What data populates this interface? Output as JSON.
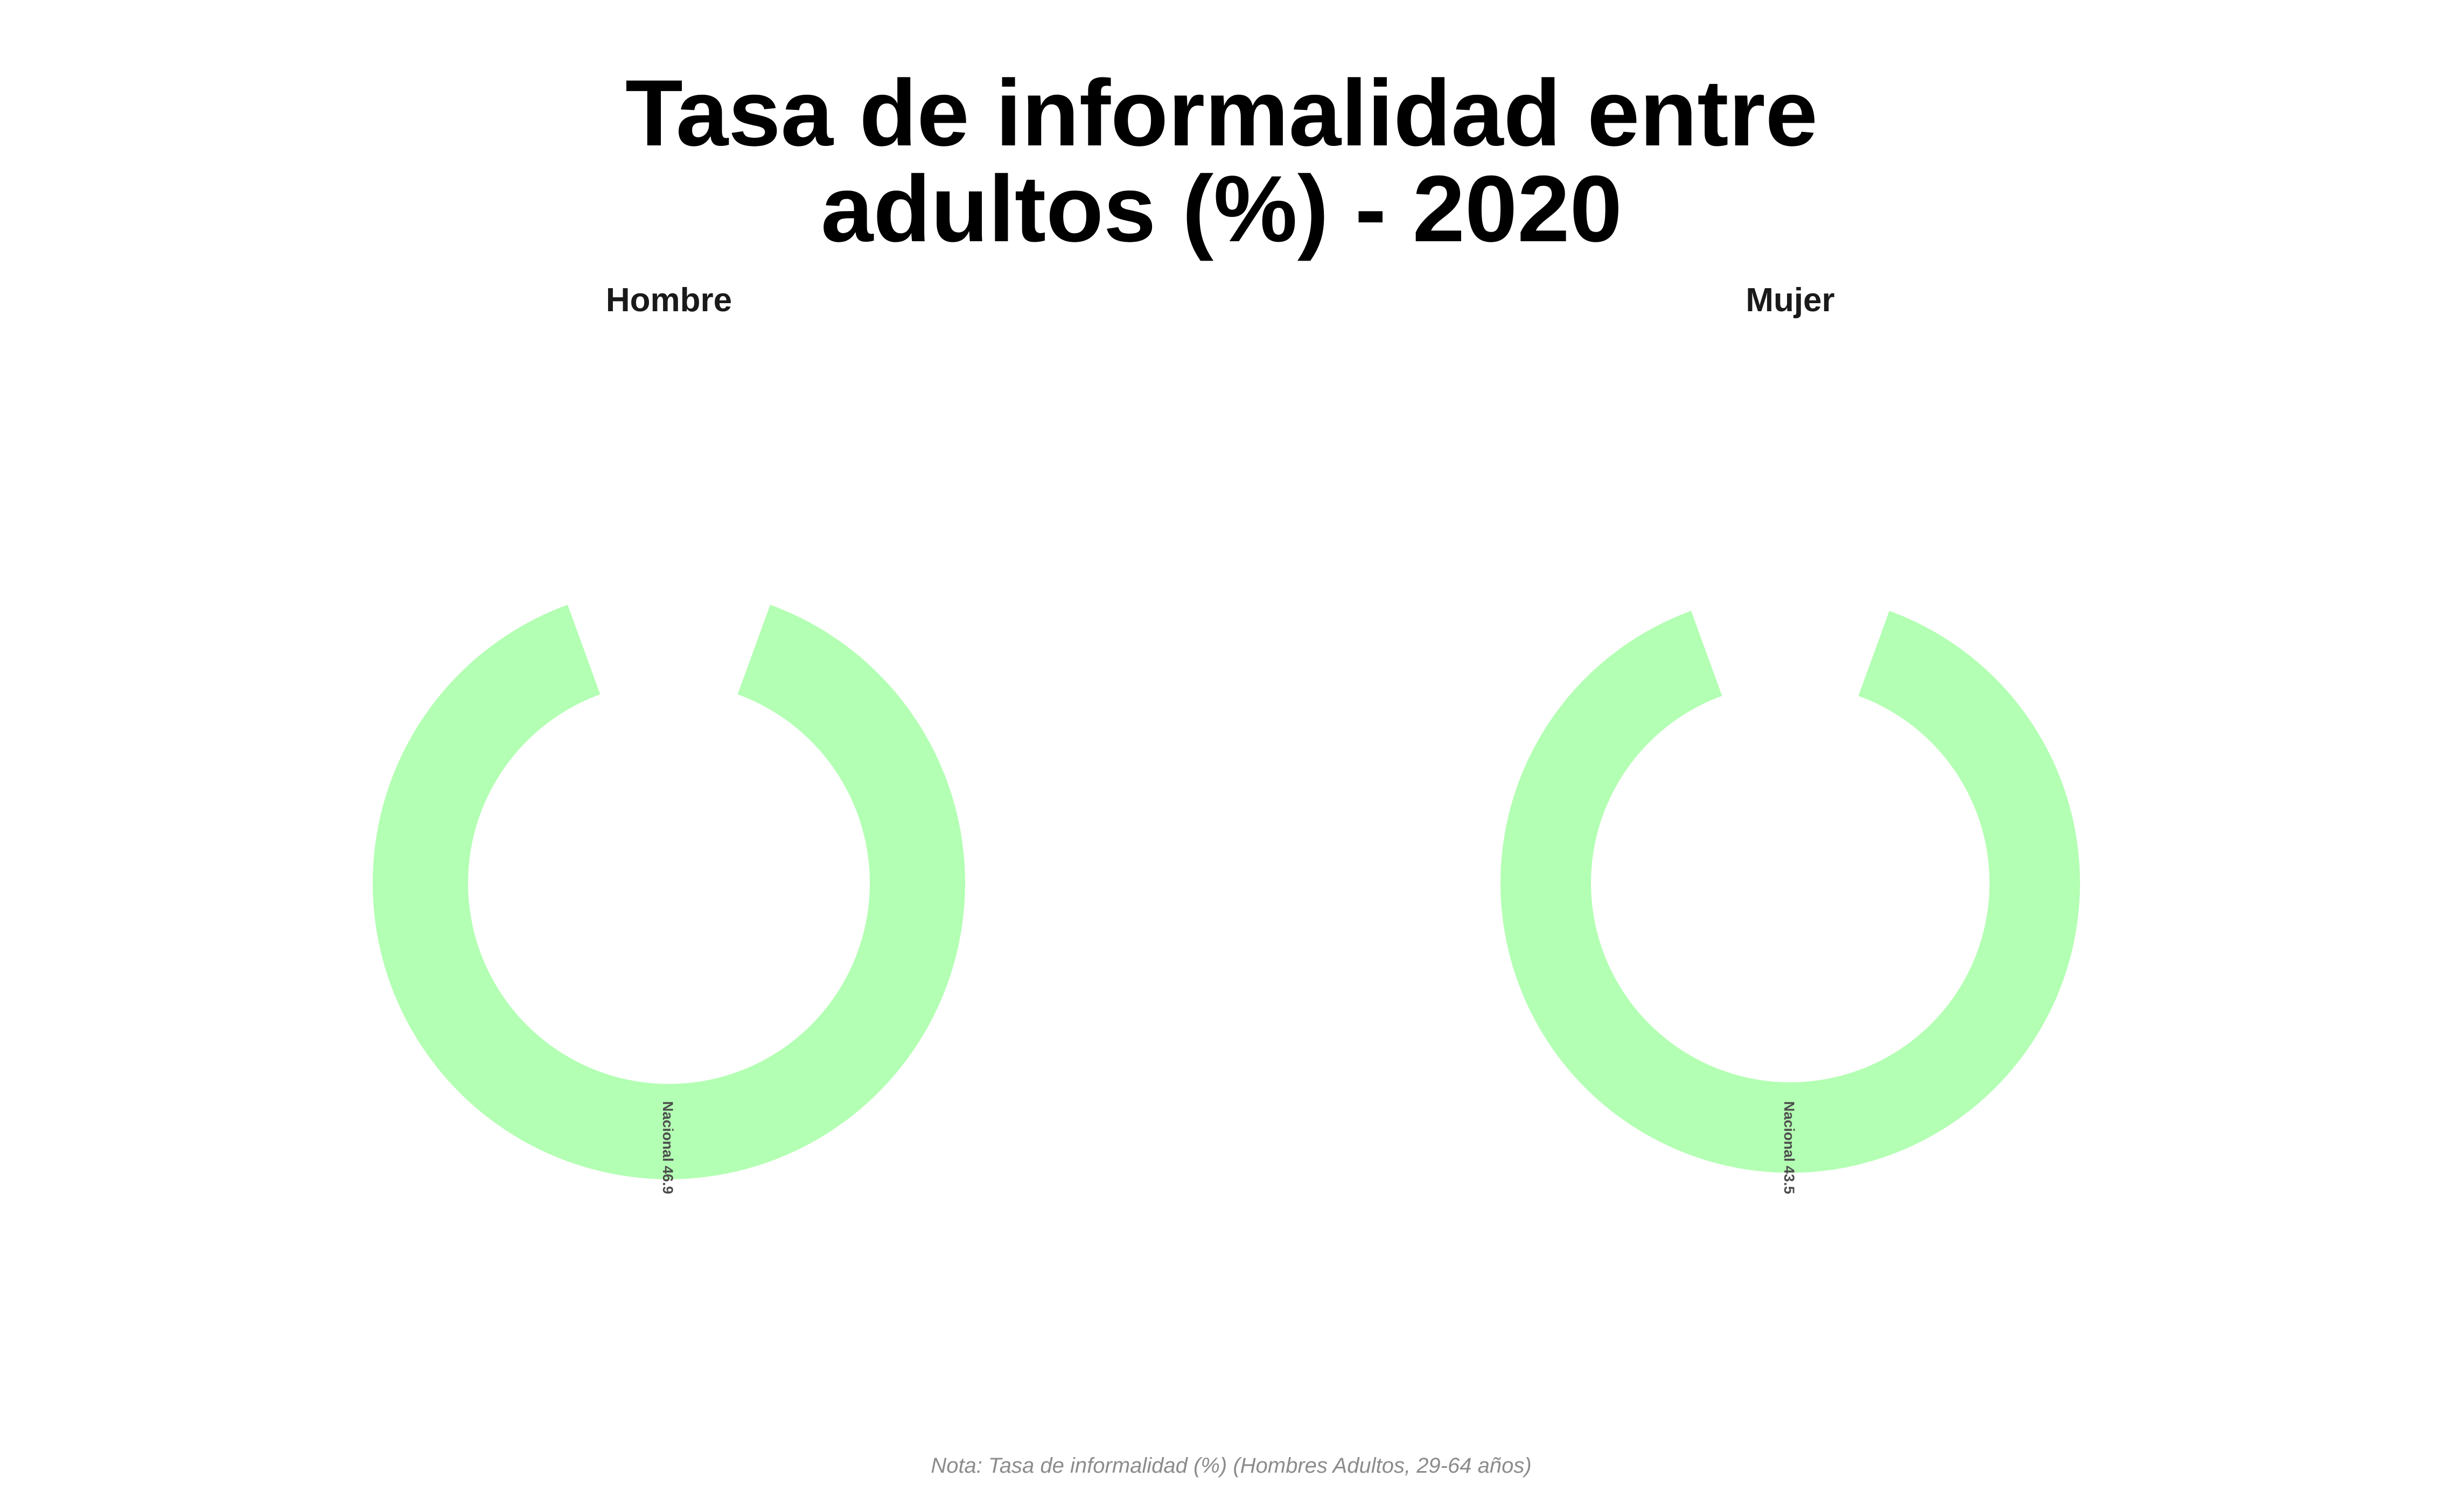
{
  "chart_data": {
    "type": "pie",
    "style": "donut",
    "title_lines": [
      "Tasa de informalidad entre",
      "adultos (%) - 2020"
    ],
    "note": "Nota: Tasa de informalidad (%) (Hombres Adultos, 29-64 años)",
    "ring_color": "#B3FFB3",
    "panels": [
      {
        "title": "Hombre",
        "categories": [
          "Nacional"
        ],
        "values": [
          46.9
        ],
        "labels": [
          "Nacional 46.9"
        ]
      },
      {
        "title": "Mujer",
        "categories": [
          "Nacional"
        ],
        "values": [
          43.5
        ],
        "labels": [
          "Nacional 43.5"
        ]
      }
    ]
  }
}
